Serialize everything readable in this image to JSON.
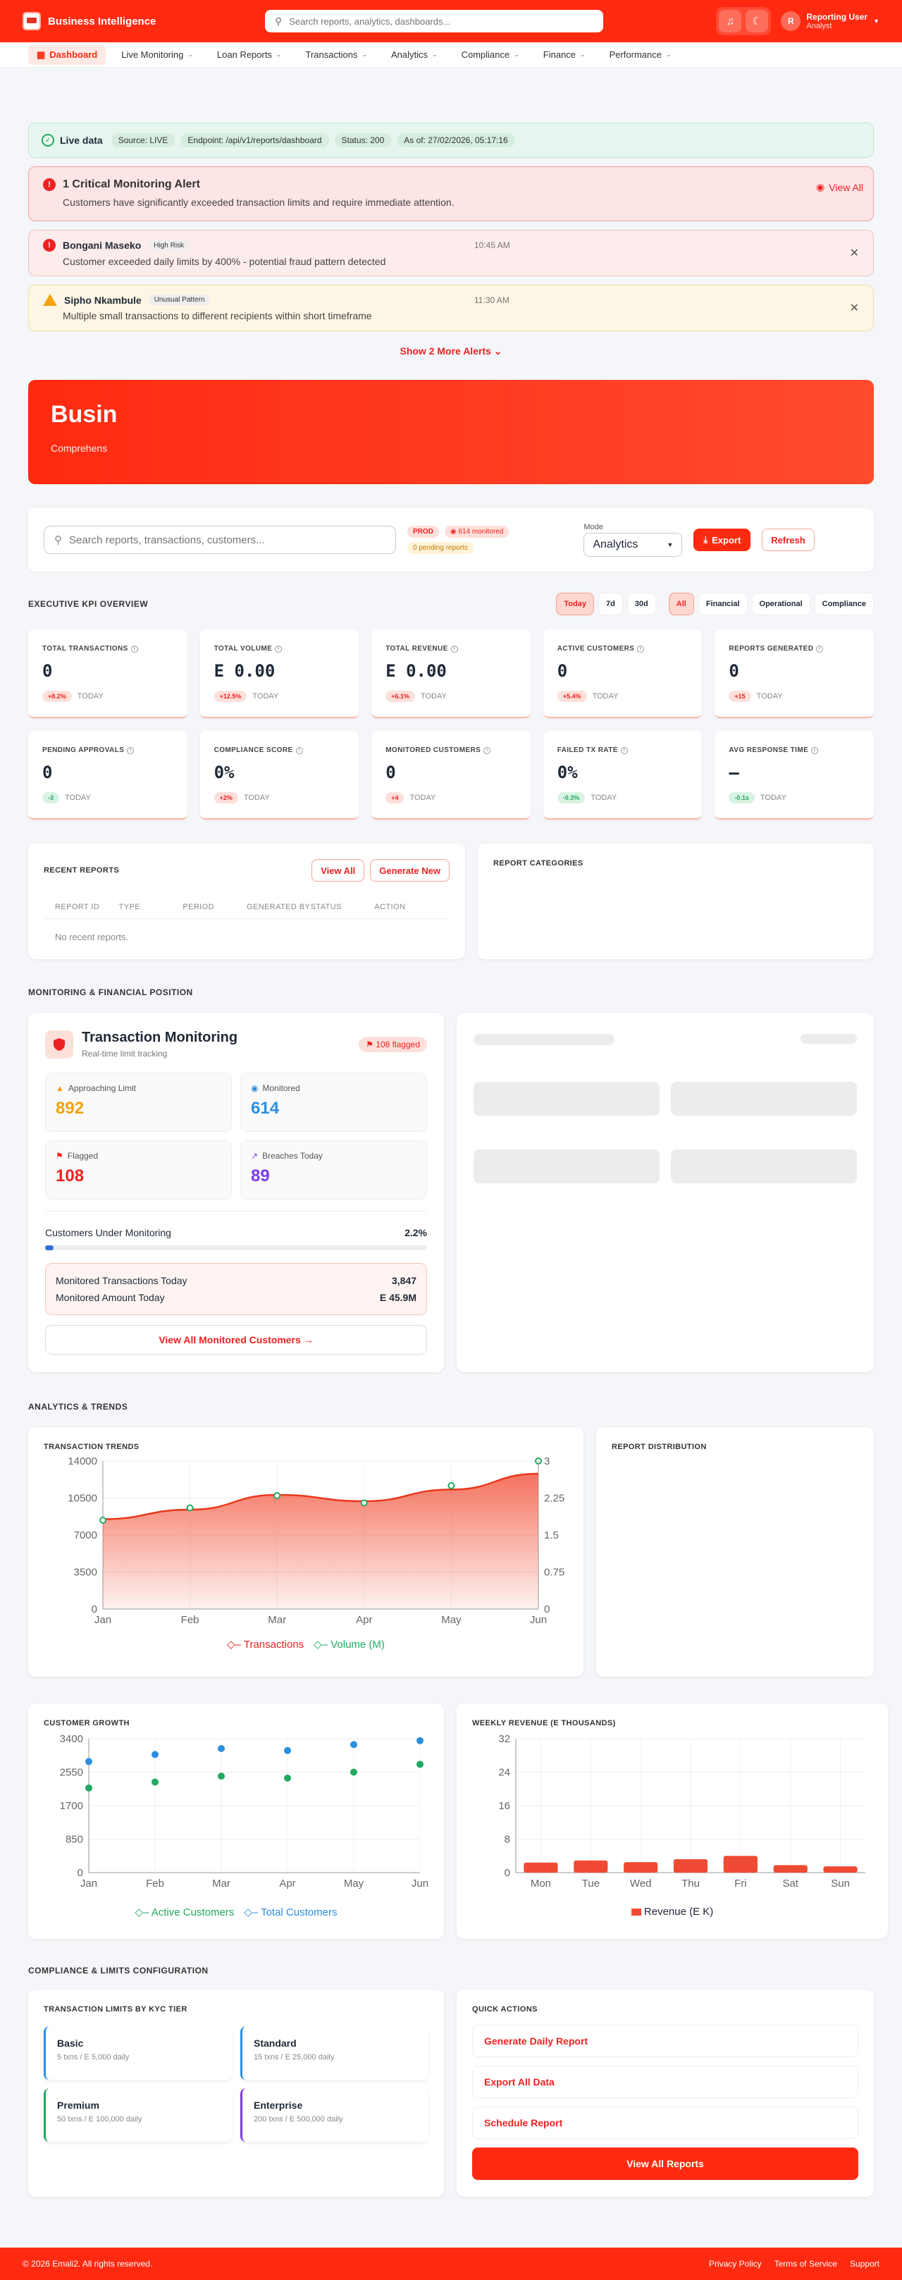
{
  "app": {
    "title": "Business Intelligence"
  },
  "header": {
    "search_placeholder": "Search reports, analytics, dashboards...",
    "user": {
      "initial": "R",
      "name": "Reporting User",
      "role": "Analyst"
    }
  },
  "nav": [
    {
      "label": "Dashboard"
    },
    {
      "label": "Live Monitoring"
    },
    {
      "label": "Loan Reports"
    },
    {
      "label": "Transactions"
    },
    {
      "label": "Analytics"
    },
    {
      "label": "Compliance"
    },
    {
      "label": "Finance"
    },
    {
      "label": "Performance"
    }
  ],
  "status": {
    "live": "Live data",
    "source": "Source: LIVE",
    "endpoint": "Endpoint: /api/v1/reports/dashboard",
    "code": "Status: 200",
    "asof": "As of: 27/02/2026, 05:17:16"
  },
  "critical": {
    "title": "1 Critical Monitoring Alert",
    "message": "Customers have significantly exceeded transaction limits and require immediate attention.",
    "view_all": "View All"
  },
  "alerts": [
    {
      "name": "Bongani Maseko",
      "badge": "High Risk",
      "time": "10:45 AM",
      "message": "Customer exceeded daily limits by 400% - potential fraud pattern detected"
    },
    {
      "name": "Sipho Nkambule",
      "badge": "Unusual Pattern",
      "time": "11:30 AM",
      "message": "Multiple small transactions to different recipients within short timeframe"
    }
  ],
  "show_more": "Show 2 More Alerts",
  "hero": {
    "title": "Busin",
    "subtitle": "Comprehens"
  },
  "toolbar": {
    "search_placeholder": "Search reports, transactions, customers...",
    "env": "PROD",
    "monitored": "614 monitored",
    "pending": "0 pending reports",
    "mode_label": "Mode",
    "mode_value": "Analytics",
    "export": "Export",
    "refresh": "Refresh"
  },
  "kpi_section": {
    "title": "EXECUTIVE KPI OVERVIEW",
    "periods": [
      "Today",
      "7d",
      "30d"
    ],
    "categories": [
      "All",
      "Financial",
      "Operational",
      "Compliance"
    ]
  },
  "kpis": [
    {
      "label": "TOTAL TRANSACTIONS",
      "value": "0",
      "delta": "+8.2%",
      "period": "TODAY",
      "good": false
    },
    {
      "label": "TOTAL VOLUME",
      "value": "E 0.00",
      "delta": "+12.5%",
      "period": "TODAY",
      "good": false
    },
    {
      "label": "TOTAL REVENUE",
      "value": "E 0.00",
      "delta": "+6.1%",
      "period": "TODAY",
      "good": false
    },
    {
      "label": "ACTIVE CUSTOMERS",
      "value": "0",
      "delta": "+5.4%",
      "period": "TODAY",
      "good": false
    },
    {
      "label": "REPORTS GENERATED",
      "value": "0",
      "delta": "+15",
      "period": "TODAY",
      "good": false
    },
    {
      "label": "PENDING APPROVALS",
      "value": "0",
      "delta": "-3",
      "period": "TODAY",
      "good": true
    },
    {
      "label": "COMPLIANCE SCORE",
      "value": "0%",
      "delta": "+2%",
      "period": "TODAY",
      "good": false
    },
    {
      "label": "MONITORED CUSTOMERS",
      "value": "0",
      "delta": "+4",
      "period": "TODAY",
      "good": false
    },
    {
      "label": "FAILED TX RATE",
      "value": "0%",
      "delta": "-0.3%",
      "period": "TODAY",
      "good": true
    },
    {
      "label": "AVG RESPONSE TIME",
      "value": "—",
      "delta": "-0.1s",
      "period": "TODAY",
      "good": true
    }
  ],
  "recent_reports": {
    "title": "RECENT REPORTS",
    "view_all": "View All",
    "generate": "Generate New",
    "columns": [
      "REPORT ID",
      "TYPE",
      "PERIOD",
      "GENERATED BY",
      "STATUS",
      "ACTION"
    ],
    "empty": "No recent reports."
  },
  "report_categories": {
    "title": "REPORT CATEGORIES"
  },
  "monitoring_section": {
    "title": "MONITORING & FINANCIAL POSITION"
  },
  "monitoring": {
    "title": "Transaction Monitoring",
    "subtitle": "Real-time limit tracking",
    "flagged_badge": "108 flagged",
    "stats": [
      {
        "label": "Approaching Limit",
        "value": "892",
        "color": "#f2a30f"
      },
      {
        "label": "Monitored",
        "value": "614",
        "color": "#2b8fe0"
      },
      {
        "label": "Flagged",
        "value": "108",
        "color": "#e22"
      },
      {
        "label": "Breaches Today",
        "value": "89",
        "color": "#7c3aed"
      }
    ],
    "under_label": "Customers Under Monitoring",
    "under_pct": "2.2%",
    "under_fraction": 0.022,
    "tx_label": "Monitored Transactions Today",
    "tx_value": "3,847",
    "amt_label": "Monitored Amount Today",
    "amt_value": "E 45.9M",
    "button": "View All Monitored Customers"
  },
  "analytics_section": {
    "title": "ANALYTICS & TRENDS"
  },
  "report_distribution": {
    "title": "REPORT DISTRIBUTION"
  },
  "compliance_section": {
    "title": "COMPLIANCE & LIMITS CONFIGURATION"
  },
  "limits": {
    "title": "TRANSACTION LIMITS BY KYC TIER",
    "tiers": [
      {
        "name": "Basic",
        "desc": "5 txns / E 5,000 daily",
        "color": "#2b8fe0"
      },
      {
        "name": "Standard",
        "desc": "15 txns / E 25,000 daily",
        "color": "#2b8fe0"
      },
      {
        "name": "Premium",
        "desc": "50 txns / E 100,000 daily",
        "color": "#22a861"
      },
      {
        "name": "Enterprise",
        "desc": "200 txns / E 500,000 daily",
        "color": "#7c3aed"
      }
    ]
  },
  "quick_actions": {
    "title": "QUICK ACTIONS",
    "items": [
      "Generate Daily Report",
      "Export All Data",
      "Schedule Report"
    ],
    "primary": "View All Reports"
  },
  "footer": {
    "copyright": "© 2026 Emali2. All rights reserved.",
    "links": [
      "Privacy Policy",
      "Terms of Service",
      "Support"
    ]
  },
  "chart_data": [
    {
      "type": "line",
      "title": "TRANSACTION TRENDS",
      "categories": [
        "Jan",
        "Feb",
        "Mar",
        "Apr",
        "May",
        "Jun"
      ],
      "ylim": [
        0,
        14000
      ],
      "yticks": [
        "0",
        "3500",
        "7000",
        "10500",
        "14000"
      ],
      "y2lim": [
        0,
        3
      ],
      "y2ticks": [
        "0",
        "0.75",
        "1.5",
        "2.25",
        "3"
      ],
      "series": [
        {
          "name": "Transactions",
          "values": [
            8500,
            9400,
            10800,
            10200,
            11300,
            12800
          ],
          "color": "#e8381c"
        },
        {
          "name": "Volume (M)",
          "values": [
            1.8,
            2.05,
            2.3,
            2.15,
            2.5,
            3.0
          ],
          "color": "#22a861",
          "axis": "right"
        }
      ]
    },
    {
      "type": "scatter",
      "title": "CUSTOMER GROWTH",
      "categories": [
        "Jan",
        "Feb",
        "Mar",
        "Apr",
        "May",
        "Jun"
      ],
      "ylim": [
        0,
        3400
      ],
      "yticks": [
        "0",
        "850",
        "1700",
        "2550",
        "3400"
      ],
      "series": [
        {
          "name": "Active Customers",
          "values": [
            2150,
            2300,
            2450,
            2400,
            2550,
            2750
          ],
          "color": "#22a861"
        },
        {
          "name": "Total Customers",
          "values": [
            2820,
            3000,
            3150,
            3100,
            3250,
            3350
          ],
          "color": "#2b8fe0"
        }
      ]
    },
    {
      "type": "bar",
      "title": "WEEKLY REVENUE (E THOUSANDS)",
      "categories": [
        "Mon",
        "Tue",
        "Wed",
        "Thu",
        "Fri",
        "Sat",
        "Sun"
      ],
      "ylim": [
        0,
        32
      ],
      "yticks": [
        "0",
        "8",
        "16",
        "24",
        "32"
      ],
      "series": [
        {
          "name": "Revenue (E K)",
          "values": [
            2.4,
            2.9,
            2.5,
            3.2,
            4.0,
            1.8,
            1.5
          ],
          "color": "#ef4a33"
        }
      ]
    }
  ]
}
